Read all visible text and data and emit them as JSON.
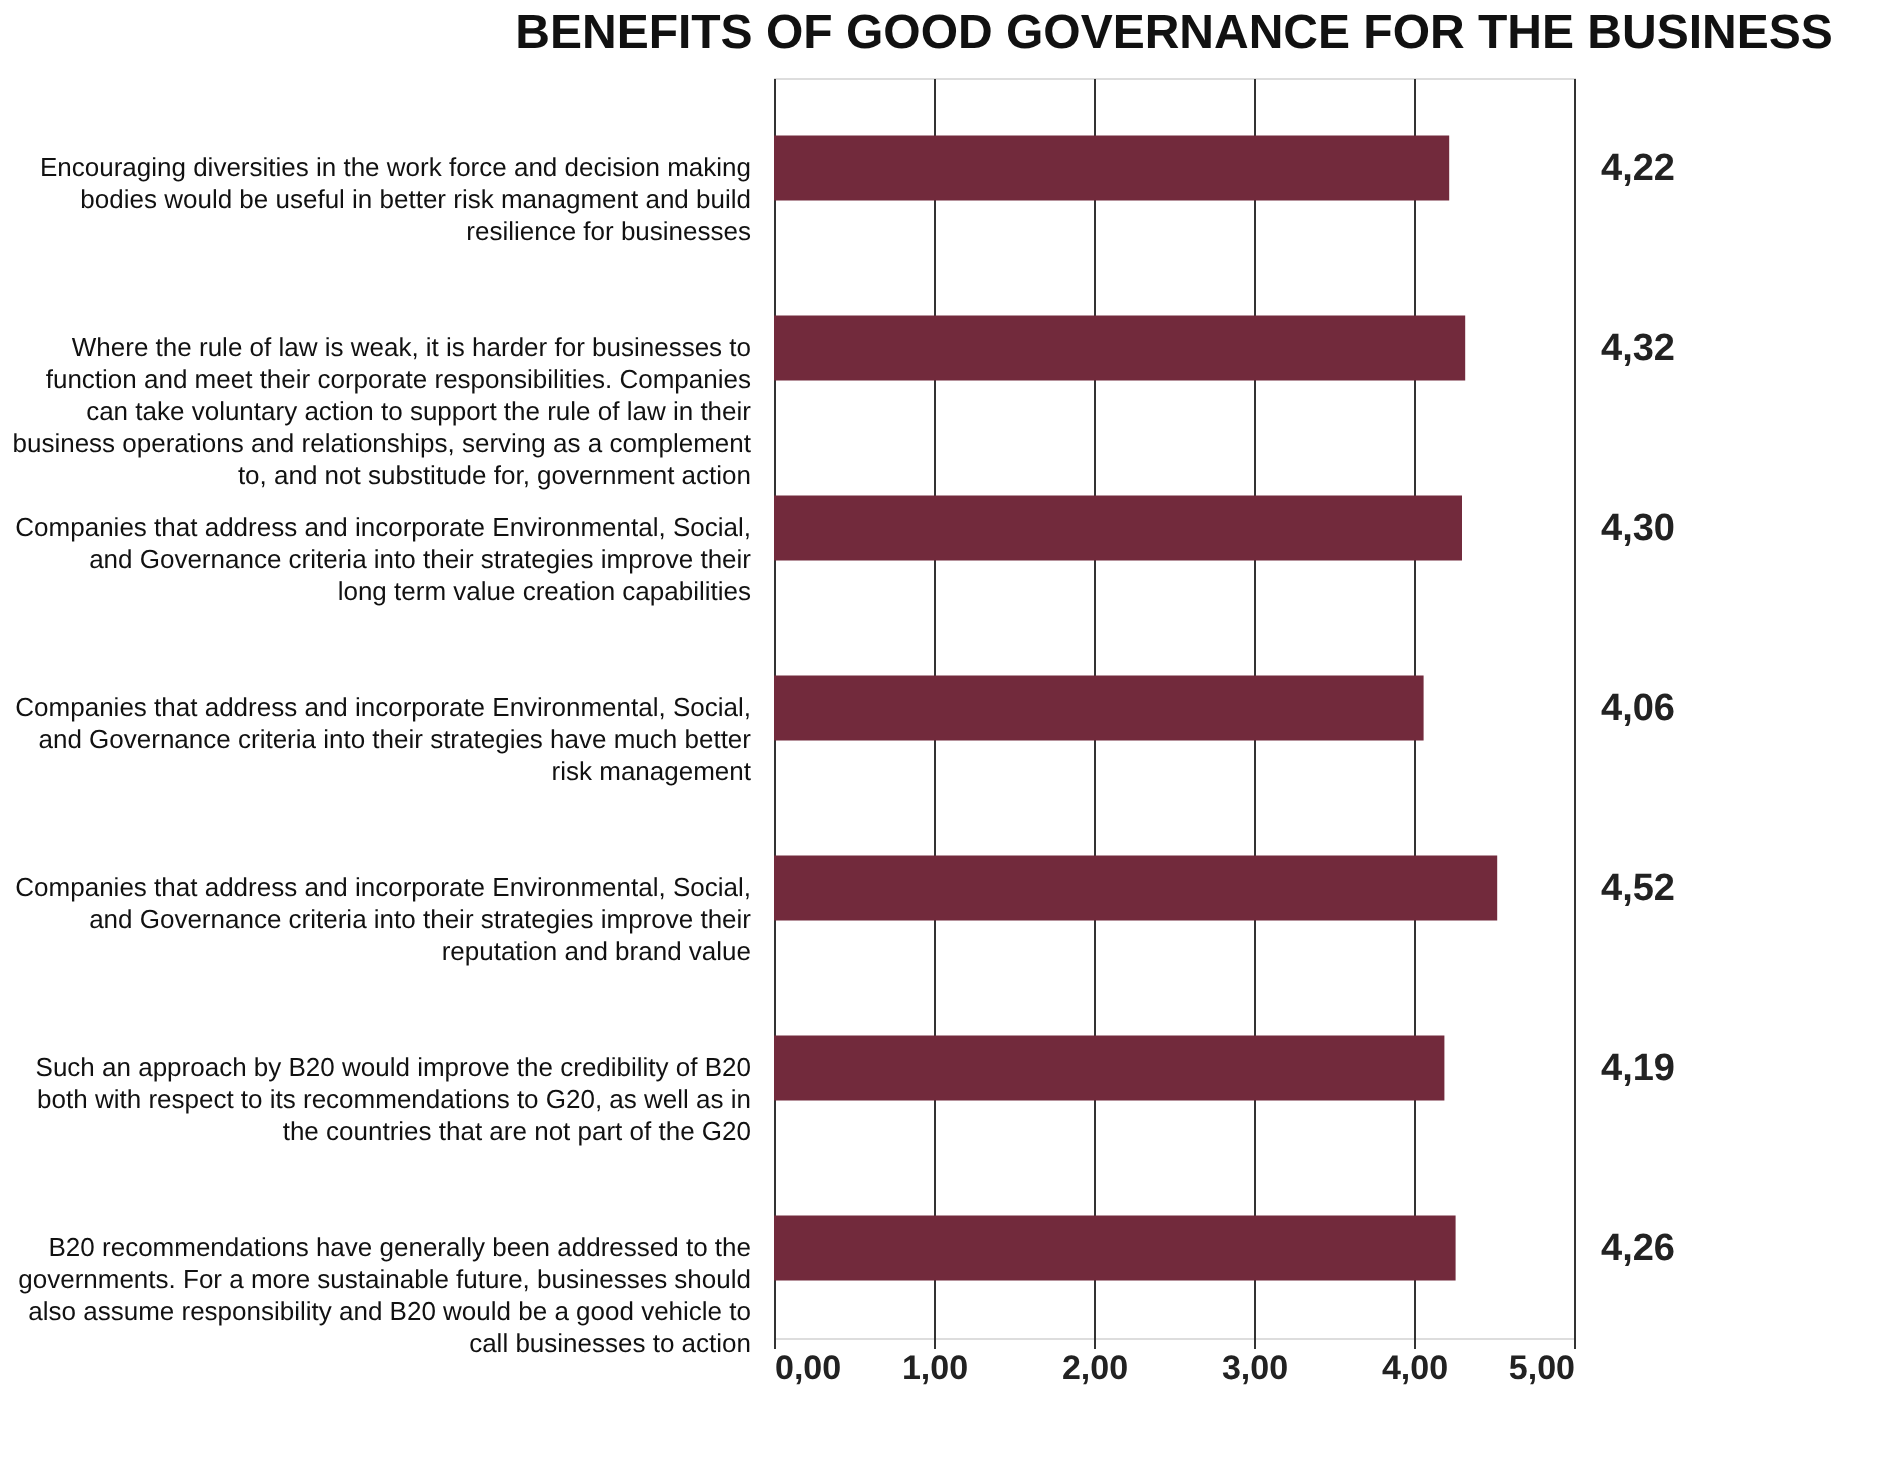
{
  "chart_data": {
    "type": "bar",
    "orientation": "horizontal",
    "title": "BENEFITS OF GOOD GOVERNANCE FOR THE BUSINESS",
    "categories": [
      "Encouraging diversities in the work force and decision making bodies would be useful in better risk managment and build resilience for businesses",
      "Where the rule of law is weak, it is harder for businesses to function and meet their corporate responsibilities. Companies can take voluntary action to support the rule of law in their business operations and relationships, serving as a complement to, and not substitude for, government action",
      "Companies that address and incorporate Environmental, Social, and Governance criteria into their strategies improve their long term value creation capabilities",
      "Companies that address and incorporate Environmental, Social, and Governance criteria into their strategies have much better risk management",
      "Companies that address and incorporate Environmental, Social, and Governance criteria into their strategies improve their reputation and brand value",
      "Such an approach by B20 would improve the credibility of B20 both with respect to its recommendations to G20, as well as in the countries that are not part of the G20",
      "B20 recommendations have generally been addressed to the governments.  For a more sustainable future, businesses should also assume responsibility and B20 would be a good vehicle to call businesses to action"
    ],
    "values": [
      4.22,
      4.32,
      4.3,
      4.06,
      4.52,
      4.19,
      4.26
    ],
    "value_labels": [
      "4,22",
      "4,32",
      "4,30",
      "4,06",
      "4,52",
      "4,19",
      "4,26"
    ],
    "color": "#722a3c",
    "xlim": [
      0,
      5
    ],
    "xticks": [
      {
        "value": 0,
        "label": "0,00"
      },
      {
        "value": 1,
        "label": "1,00"
      },
      {
        "value": 2,
        "label": "2,00"
      },
      {
        "value": 3,
        "label": "3,00"
      },
      {
        "value": 4,
        "label": "4,00"
      },
      {
        "value": 5,
        "label": "5,00"
      }
    ],
    "grid": "x"
  }
}
